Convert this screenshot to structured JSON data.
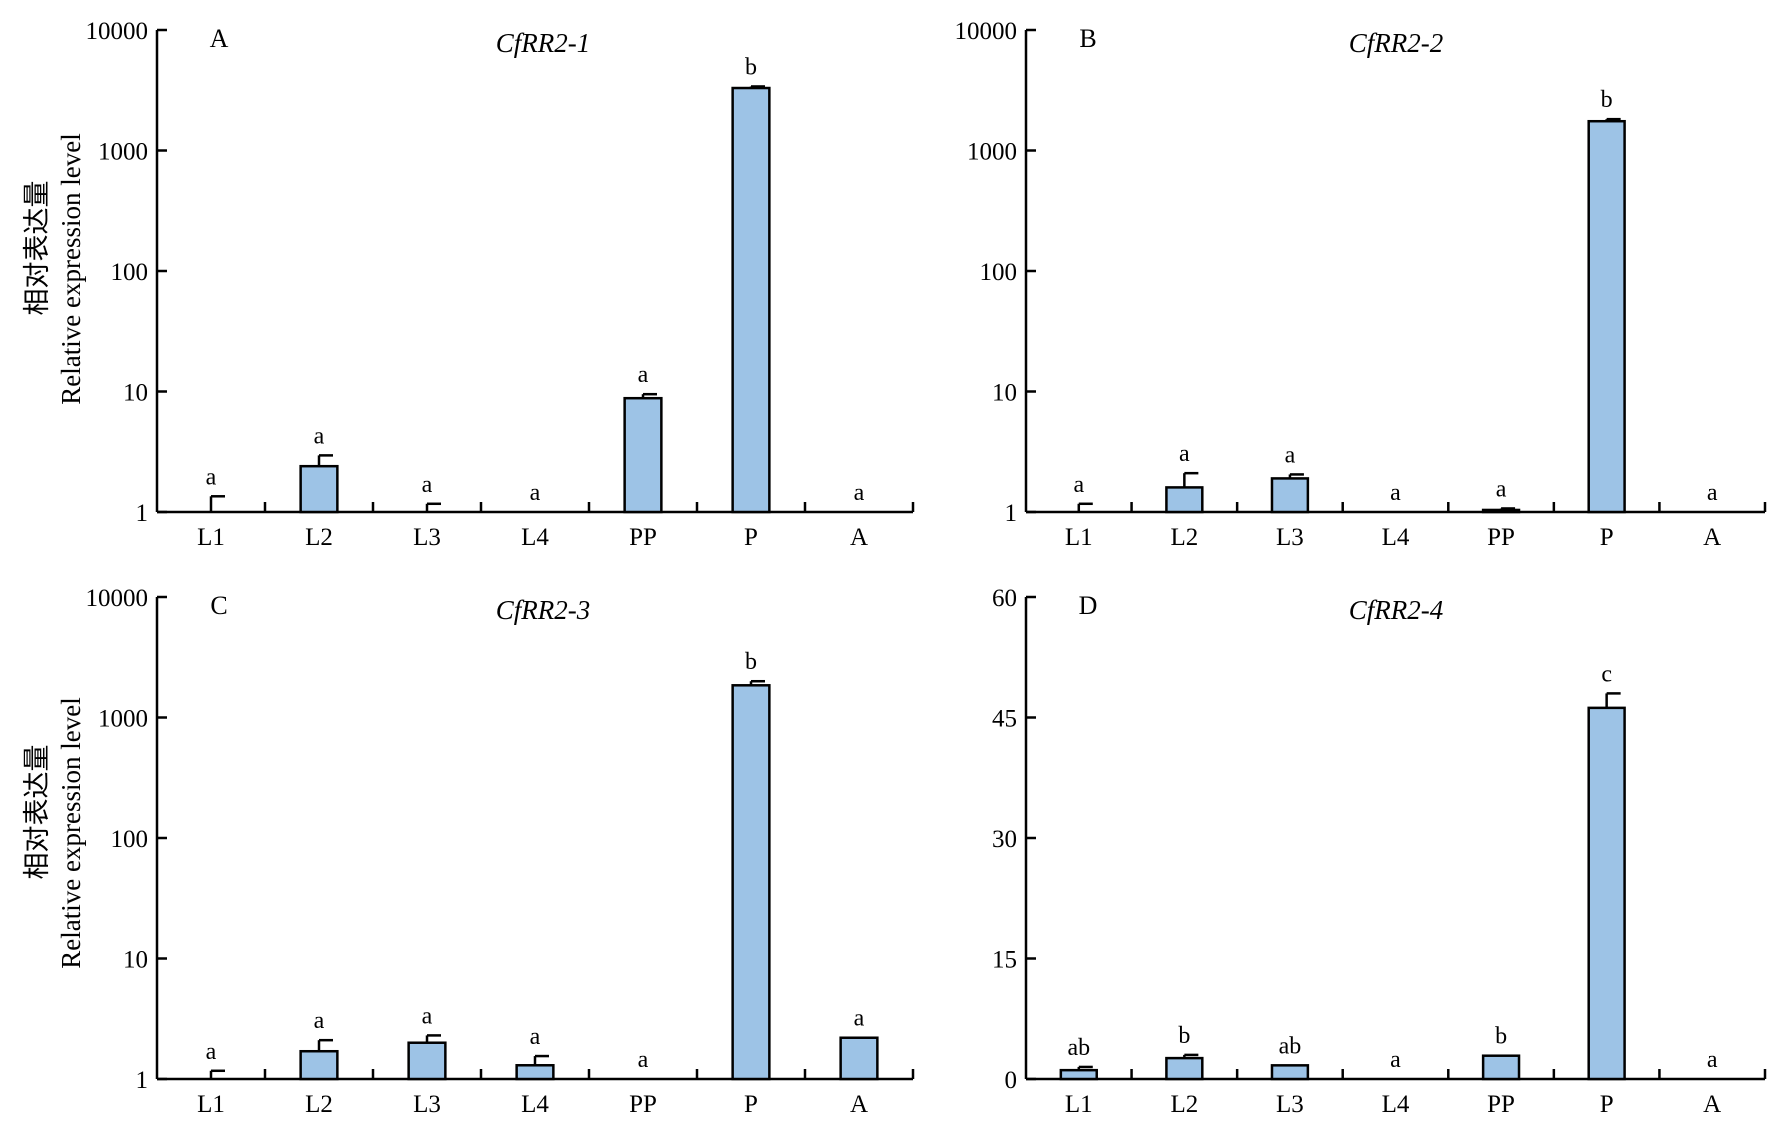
{
  "y_axis_label": {
    "zh": "相对表达量",
    "en": "Relative expression level"
  },
  "colors": {
    "bar_fill": "#9dc3e6",
    "axis": "#000000"
  },
  "chart_data": [
    {
      "type": "bar",
      "letter": "A",
      "title": "CfRR2-1",
      "scale": "log",
      "ylim": [
        1,
        10000
      ],
      "yticks": [
        1,
        10,
        100,
        1000,
        10000
      ],
      "categories": [
        "L1",
        "L2",
        "L3",
        "L4",
        "PP",
        "P",
        "A"
      ],
      "values": [
        1.0,
        2.4,
        1.0,
        1.0,
        8.8,
        3300,
        1.0
      ],
      "error_upper": [
        1.35,
        2.95,
        1.17,
        null,
        9.5,
        3400,
        null
      ],
      "significance": [
        "a",
        "a",
        "a",
        "a",
        "a",
        "b",
        "a"
      ]
    },
    {
      "type": "bar",
      "letter": "B",
      "title": "CfRR2-2",
      "scale": "log",
      "ylim": [
        1,
        10000
      ],
      "yticks": [
        1,
        10,
        100,
        1000,
        10000
      ],
      "categories": [
        "L1",
        "L2",
        "L3",
        "L4",
        "PP",
        "P",
        "A"
      ],
      "values": [
        1.0,
        1.6,
        1.9,
        1.0,
        1.04,
        1750,
        1.0
      ],
      "error_upper": [
        1.17,
        2.1,
        2.05,
        null,
        1.07,
        1820,
        null
      ],
      "significance": [
        "a",
        "a",
        "a",
        "a",
        "a",
        "b",
        "a"
      ]
    },
    {
      "type": "bar",
      "letter": "C",
      "title": "CfRR2-3",
      "scale": "log",
      "ylim": [
        1,
        10000
      ],
      "yticks": [
        1,
        10,
        100,
        1000,
        10000
      ],
      "categories": [
        "L1",
        "L2",
        "L3",
        "L4",
        "PP",
        "P",
        "A"
      ],
      "values": [
        1.0,
        1.7,
        2.0,
        1.3,
        1.0,
        1850,
        2.2
      ],
      "error_upper": [
        1.17,
        2.1,
        2.3,
        1.55,
        null,
        2000,
        null
      ],
      "significance": [
        "a",
        "a",
        "a",
        "a",
        "a",
        "b",
        "a"
      ]
    },
    {
      "type": "bar",
      "letter": "D",
      "title": "CfRR2-4",
      "scale": "linear",
      "ylim": [
        0,
        60
      ],
      "yticks": [
        0,
        15,
        30,
        45,
        60
      ],
      "categories": [
        "L1",
        "L2",
        "L3",
        "L4",
        "PP",
        "P",
        "A"
      ],
      "values": [
        1.1,
        2.6,
        1.7,
        0,
        2.9,
        46.2,
        0
      ],
      "error_upper": [
        1.5,
        3.0,
        null,
        null,
        null,
        48.0,
        null
      ],
      "significance": [
        "ab",
        "b",
        "ab",
        "a",
        "b",
        "c",
        "a"
      ]
    }
  ]
}
